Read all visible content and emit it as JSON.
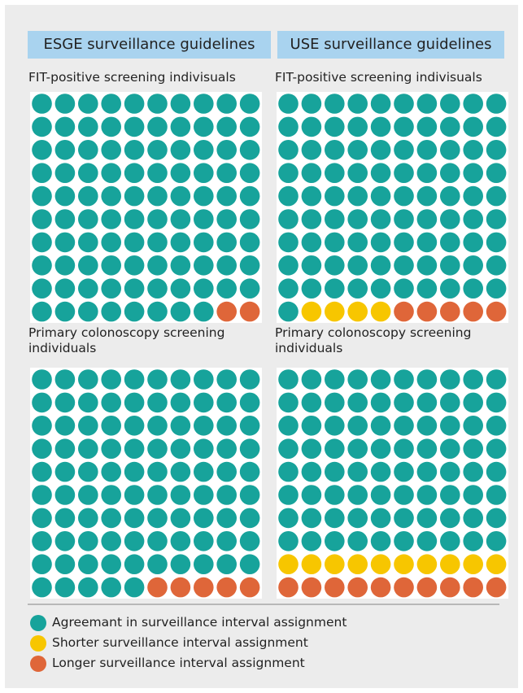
{
  "columns": [
    "ESGE surveillance guidelines",
    "USE surveillance guidelines"
  ],
  "legend": {
    "categories": [
      "Agreemant in surveillance interval assignment",
      "Shorter surveillance interval assignment",
      "Longer surveillance interval assignment"
    ],
    "colors": [
      "#17a39b",
      "#f7c600",
      "#df6639"
    ]
  },
  "chart_data": [
    {
      "type": "waffle",
      "title": "FIT-positive screening indivisuals",
      "values": [
        98,
        0,
        2
      ]
    },
    {
      "type": "waffle",
      "title": "FIT-positive screening indivisuals",
      "values": [
        91,
        4,
        5
      ]
    },
    {
      "type": "waffle",
      "title": "Primary colonoscopy screening individuals",
      "values": [
        95,
        0,
        5
      ]
    },
    {
      "type": "waffle",
      "title": "Primary colonoscopy screening individuals",
      "values": [
        80,
        10,
        10
      ]
    }
  ]
}
